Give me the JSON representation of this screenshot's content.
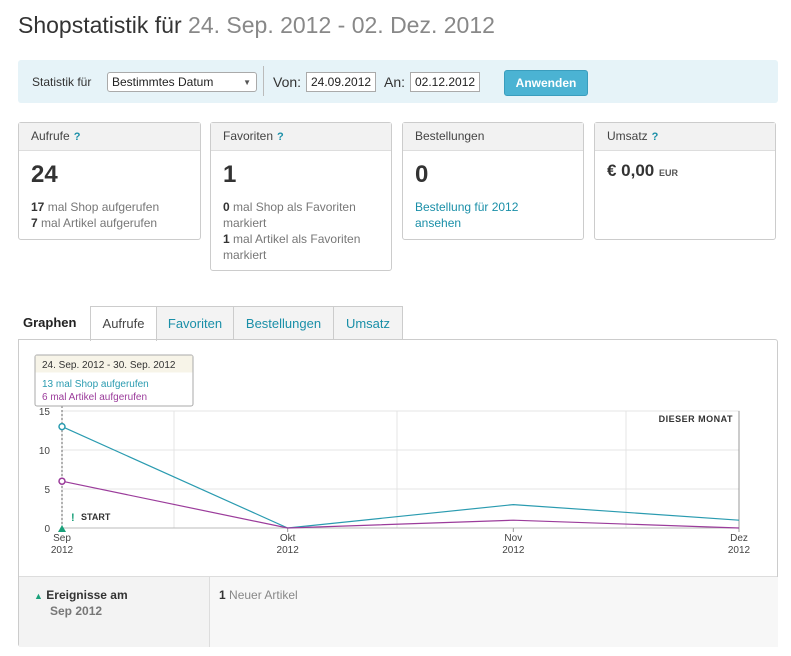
{
  "header": {
    "title": "Shopstatistik für",
    "range": "24. Sep. 2012 - 02. Dez. 2012"
  },
  "filter": {
    "label": "Statistik für",
    "select": "Bestimmtes Datum",
    "from_label": "Von:",
    "from": "24.09.2012",
    "to_label": "An:",
    "to": "02.12.2012",
    "button": "Anwenden"
  },
  "cards": [
    {
      "title": "Aufrufe",
      "help": "?",
      "value": "24",
      "lines": [
        {
          "num": "17",
          "text": "mal Shop aufgerufen"
        },
        {
          "num": "7",
          "text": "mal Artikel aufgerufen"
        }
      ]
    },
    {
      "title": "Favoriten",
      "help": "?",
      "value": "1",
      "lines": [
        {
          "num": "0",
          "text": "mal Shop als Favoriten markiert"
        },
        {
          "num": "1",
          "text": "mal Artikel als Favoriten markiert"
        }
      ]
    },
    {
      "title": "Bestellungen",
      "value": "0",
      "link": "Bestellung für 2012 ansehen"
    },
    {
      "title": "Umsatz",
      "help": "?",
      "value": "€ 0,00",
      "unit": "EUR"
    }
  ],
  "tabs": {
    "label": "Graphen",
    "items": [
      "Aufrufe",
      "Favoriten",
      "Bestellungen",
      "Umsatz"
    ],
    "active": 0
  },
  "chart": {
    "type": "line",
    "categories": [
      "Sep",
      "Okt",
      "Nov",
      "Dez"
    ],
    "category_years": [
      "2012",
      "2012",
      "2012",
      "2012"
    ],
    "series": [
      {
        "color": "#2a9bb0",
        "values": [
          13,
          0,
          3,
          1
        ]
      },
      {
        "color": "#9b3c9b",
        "values": [
          6,
          0,
          1,
          0
        ]
      }
    ],
    "ylim": [
      0,
      15
    ],
    "yticks": [
      0,
      5,
      10,
      15
    ],
    "grid": true,
    "tooltip": {
      "title": "24. Sep. 2012 - 30. Sep. 2012",
      "lines": [
        "13 mal Shop aufgerufen",
        "6 mal Artikel aufgerufen"
      ]
    },
    "annotations": {
      "period": "DIESER MONAT",
      "marker": "!",
      "start": "START"
    }
  },
  "events": {
    "title": "Ereignisse am",
    "date": "Sep 2012",
    "items": [
      {
        "num": "1",
        "text": "Neuer Artikel"
      }
    ]
  }
}
